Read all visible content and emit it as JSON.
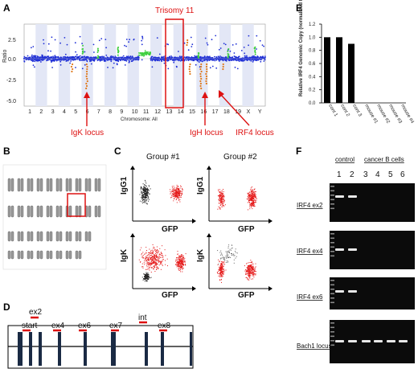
{
  "panels": {
    "a": "A",
    "b": "B",
    "c": "C",
    "d": "D",
    "e": "E",
    "f": "F"
  },
  "panel_a": {
    "title": "Trisomy 11",
    "ylabel": "Ratio",
    "xlabel": "Chromosome: All",
    "yticks": [
      "2.5",
      "0.0",
      "-2.5",
      "-5.0"
    ],
    "chromosomes": [
      "1",
      "2",
      "3",
      "4",
      "5",
      "6",
      "7",
      "8",
      "9",
      "10",
      "11",
      "12",
      "13",
      "14",
      "15",
      "16",
      "17",
      "18",
      "19",
      "X",
      "Y"
    ],
    "arrows": [
      "IgK locus",
      "IgH locus",
      "IRF4 locus"
    ],
    "colors": {
      "normal": "#1f2fd6",
      "gain": "#3fcf3f",
      "loss": "#e07a1c",
      "highlight": "#d11"
    }
  },
  "panel_c": {
    "groups": [
      "Group #1",
      "Group #2"
    ],
    "y_labels": [
      "IgG1",
      "IgK"
    ],
    "x_label": "GFP"
  },
  "panel_d": {
    "labels": [
      "ex2",
      "start",
      "ex4",
      "ex6",
      "ex7",
      "int",
      "ex8"
    ]
  },
  "panel_f": {
    "control_label": "control",
    "cancer_label": "cancer B cells",
    "lanes": [
      "1",
      "2",
      "3",
      "4",
      "5",
      "6"
    ],
    "rows": [
      "IRF4 ex2",
      "IRF4 ex4",
      "IRF4 ex6",
      "Bach1 locus"
    ]
  },
  "chart_data": {
    "type": "bar",
    "ylabel": "Relative IRF4 Genomic Copy (normalized to Hsp70 locus)",
    "categories": [
      "cont 1",
      "cont 2",
      "cont 3",
      "mouse #1",
      "mouse #2",
      "mouse #3",
      "mouse #4"
    ],
    "values": [
      1.0,
      1.0,
      0.9,
      0.0,
      0.0,
      0.0,
      0.0
    ],
    "ylim": [
      0,
      1.2
    ],
    "yticks": [
      "0.0",
      "0.2",
      "0.4",
      "0.6",
      "0.8",
      "1.0",
      "1.2"
    ]
  }
}
